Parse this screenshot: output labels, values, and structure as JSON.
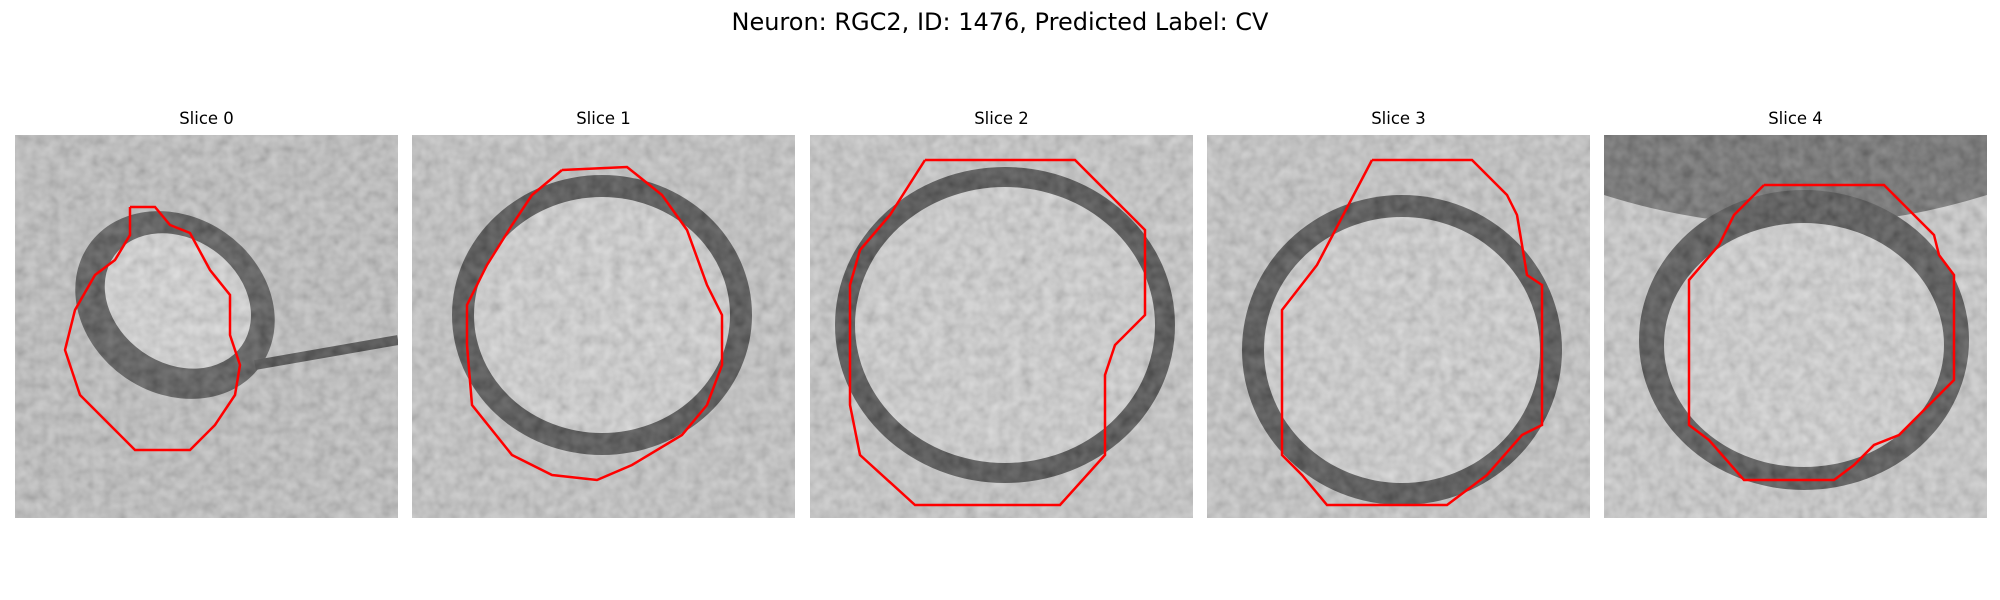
{
  "figure": {
    "title": "Neuron: RGC2, ID: 1476, Predicted Label: CV"
  },
  "colors": {
    "contour": "#ff0000",
    "background": "#ffffff"
  },
  "panels": [
    {
      "title": "Slice 0"
    },
    {
      "title": "Slice 1"
    },
    {
      "title": "Slice 2"
    },
    {
      "title": "Slice 3"
    },
    {
      "title": "Slice 4"
    }
  ]
}
